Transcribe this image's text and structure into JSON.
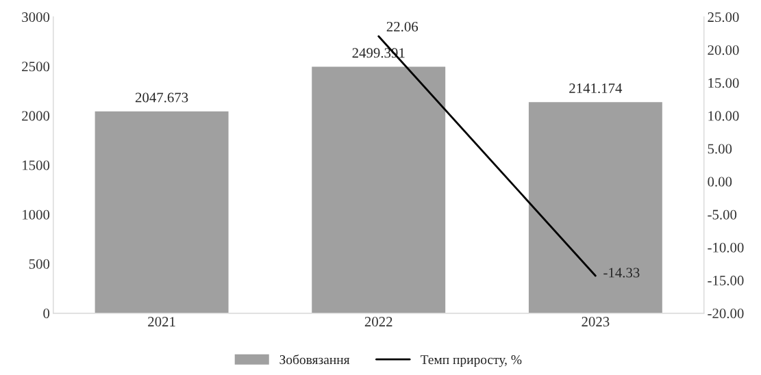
{
  "chart_data": {
    "type": "bar",
    "categories": [
      "2021",
      "2022",
      "2023"
    ],
    "series": [
      {
        "name": "Зобовязання",
        "color": "#a0a0a0",
        "values": [
          2047.673,
          2499.391,
          2141.174
        ]
      },
      {
        "name": "Темп приросту, %",
        "type": "line",
        "color": "#000000",
        "axis": "y2",
        "values": [
          null,
          22.06,
          -14.33
        ]
      }
    ],
    "ylim": [
      0,
      3000
    ],
    "yticks": [
      0,
      500,
      1000,
      1500,
      2000,
      2500,
      3000
    ],
    "y2lim": [
      -20,
      25
    ],
    "y2ticks": [
      {
        "value": -20,
        "label": "-20.00"
      },
      {
        "value": -15,
        "label": "-15.00"
      },
      {
        "value": -10,
        "label": "-10.00"
      },
      {
        "value": -5,
        "label": "-5.00"
      },
      {
        "value": 0,
        "label": "0.00"
      },
      {
        "value": 5,
        "label": "5.00"
      },
      {
        "value": 10,
        "label": "10.00"
      },
      {
        "value": 15,
        "label": "15.00"
      },
      {
        "value": 20,
        "label": "20.00"
      },
      {
        "value": 25,
        "label": "25.00"
      }
    ],
    "data_labels": true,
    "legend": "bottom",
    "grid": false
  }
}
